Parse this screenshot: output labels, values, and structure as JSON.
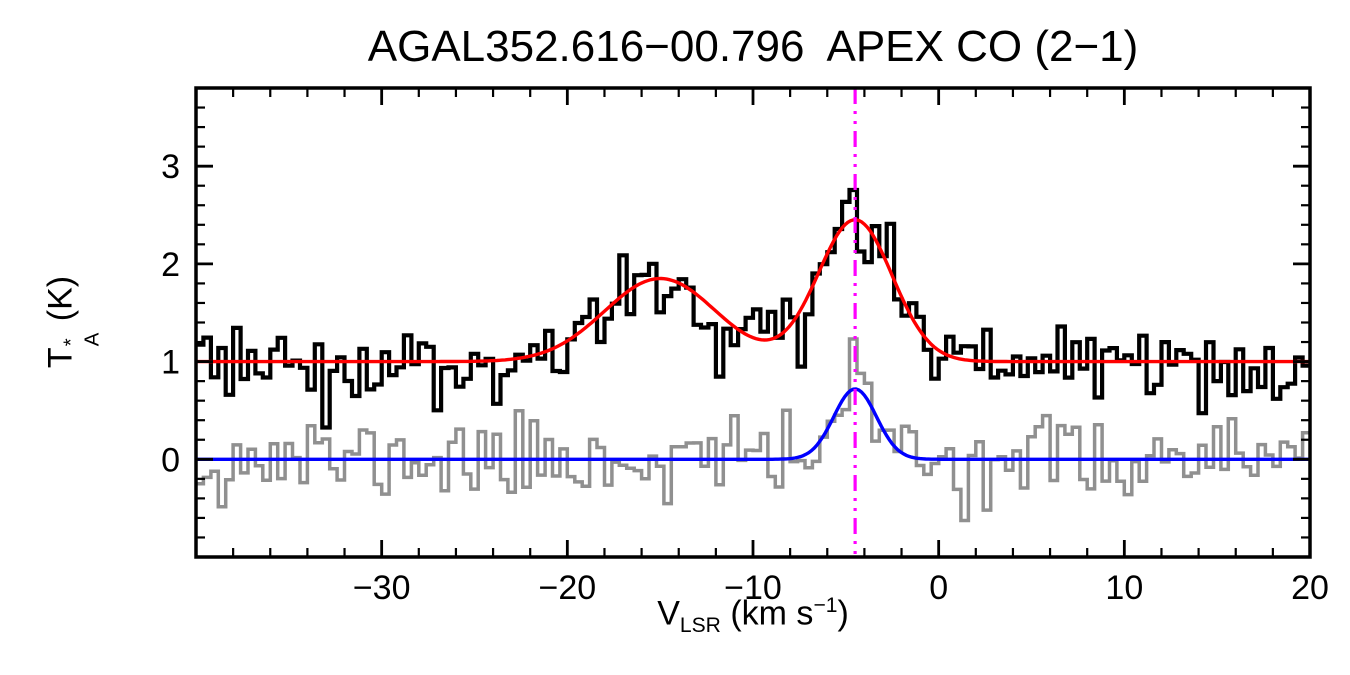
{
  "chart_data": {
    "type": "line",
    "title": "AGAL352.616−00.796  APEX CO (2−1)",
    "xlabel": "V_LSR (km s^−1)",
    "ylabel": "T_A^* (K)",
    "xlim": [
      -40,
      20
    ],
    "ylim": [
      -1.0,
      3.8
    ],
    "x_major_ticks": [
      -30,
      -20,
      -10,
      0,
      10,
      20
    ],
    "x_tick_labels": [
      "−30",
      "−20",
      "−10",
      "0",
      "10",
      "20"
    ],
    "x_minor_step": 2,
    "y_major_ticks": [
      0,
      1,
      2,
      3
    ],
    "y_tick_labels": [
      "0",
      "1",
      "2",
      "3"
    ],
    "y_minor_step": 0.2,
    "grid": false,
    "legend": false,
    "channel_width": 0.4,
    "vertical_line": {
      "x": -4.5,
      "color": "#ff00ff",
      "style": "dash-dot"
    },
    "colors": {
      "observed": "#000000",
      "secondary": "#909090",
      "fit_main": "#ff0000",
      "fit_secondary": "#0000ff",
      "marker_line": "#ff00ff"
    },
    "series": [
      {
        "name": "secondary-spectrum",
        "type": "histogram",
        "color": "#909090",
        "baseline": 0.0,
        "noise_sigma": 0.22,
        "seed": 11,
        "components": [
          {
            "center": -4.5,
            "amplitude": 0.72,
            "sigma": 1.15
          }
        ]
      },
      {
        "name": "observed-spectrum",
        "type": "histogram",
        "color": "#000000",
        "baseline": 1.0,
        "noise_sigma": 0.22,
        "seed": 3,
        "components": [
          {
            "center": -15.0,
            "amplitude": 0.85,
            "sigma": 3.0
          },
          {
            "center": -4.5,
            "amplitude": 1.45,
            "sigma": 2.0
          }
        ]
      },
      {
        "name": "gaussian-fit-secondary",
        "type": "model",
        "color": "#0000ff",
        "baseline": 0.0,
        "components": [
          {
            "center": -4.5,
            "amplitude": 0.72,
            "sigma": 1.15
          }
        ]
      },
      {
        "name": "gaussian-fit-main",
        "type": "model",
        "color": "#ff0000",
        "baseline": 1.0,
        "components": [
          {
            "center": -15.0,
            "amplitude": 0.85,
            "sigma": 3.0
          },
          {
            "center": -4.5,
            "amplitude": 1.45,
            "sigma": 2.0
          }
        ]
      }
    ]
  },
  "axes": {
    "x_label": {
      "base": "V",
      "sub": "LSR",
      "unit_prefix": " (km s",
      "exp": "−1",
      "unit_suffix": ")"
    },
    "y_label": {
      "base": "T",
      "sup": "*",
      "sub": "A",
      "unit": " (K)"
    }
  }
}
